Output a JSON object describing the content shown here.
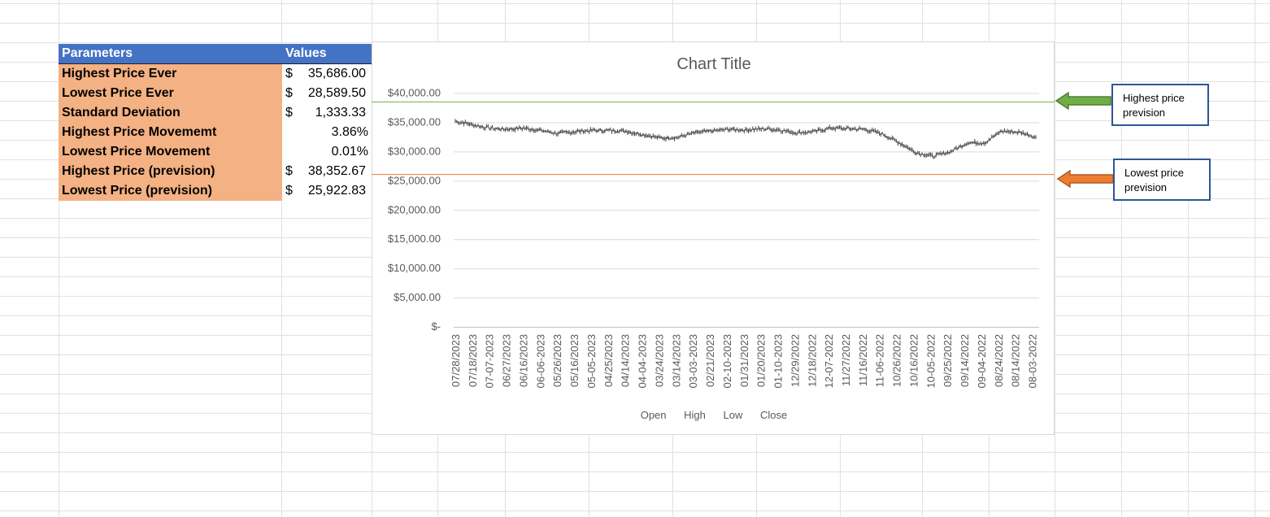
{
  "sheet": {
    "params_header": "Parameters",
    "values_header": "Values",
    "rows": [
      {
        "label": "Highest Price Ever",
        "currency": "$",
        "amount": "35,686.00"
      },
      {
        "label": "Lowest Price Ever",
        "currency": "$",
        "amount": "28,589.50"
      },
      {
        "label": "Standard Deviation",
        "currency": "$",
        "amount": "1,333.33"
      },
      {
        "label": "Highest Price Movememt",
        "percent": "3.86%"
      },
      {
        "label": "Lowest Price Movement",
        "percent": "0.01%"
      },
      {
        "label": "Highest Price (prevision)",
        "currency": "$",
        "amount": "38,352.67"
      },
      {
        "label": "Lowest Price (prevision)",
        "currency": "$",
        "amount": "25,922.83"
      }
    ]
  },
  "chart_data": {
    "type": "line",
    "title": "Chart Title",
    "ylim": [
      0,
      40000
    ],
    "y_ticks": [
      "$-",
      "$5,000.00",
      "$10,000.00",
      "$15,000.00",
      "$20,000.00",
      "$25,000.00",
      "$30,000.00",
      "$35,000.00",
      "$40,000.00"
    ],
    "categories": [
      "07/28/2023",
      "07/18/2023",
      "07-07-2023",
      "06/27/2023",
      "06/16/2023",
      "06-06-2023",
      "05/26/2023",
      "05/16/2023",
      "05-05-2023",
      "04/25/2023",
      "04/14/2023",
      "04-04-2023",
      "03/24/2023",
      "03/14/2023",
      "03-03-2023",
      "02/21/2023",
      "02-10-2023",
      "01/31/2023",
      "01/20/2023",
      "01-10-2023",
      "12/29/2022",
      "12/18/2022",
      "12-07-2022",
      "11/27/2022",
      "11/16/2022",
      "11-06-2022",
      "10/26/2022",
      "10/16/2022",
      "10-05-2022",
      "09/25/2022",
      "09/14/2022",
      "09-04-2022",
      "08/24/2022",
      "08/14/2022",
      "08-03-2022"
    ],
    "close_approx": [
      35200,
      34600,
      34000,
      33800,
      34000,
      33600,
      33100,
      33400,
      33600,
      33600,
      33500,
      32900,
      32300,
      32400,
      33200,
      33500,
      33800,
      33700,
      33900,
      33700,
      33200,
      33400,
      34000,
      33900,
      33800,
      33000,
      31500,
      29800,
      29200,
      30000,
      31500,
      31500,
      33500,
      33300,
      32500
    ],
    "legend": [
      "Open",
      "High",
      "Low",
      "Close"
    ],
    "reference_lines": [
      {
        "name": "Highest price prevision",
        "value": 38352.67,
        "color": "#70ad47"
      },
      {
        "name": "Lowest price prevision",
        "value": 25922.83,
        "color": "#ed7d31"
      }
    ],
    "grid": true,
    "legend_position": "bottom"
  },
  "callouts": {
    "high": {
      "label": "Highest price prevision",
      "arrow_color": "#70ad47"
    },
    "low": {
      "label": "Lowest price prevision",
      "arrow_color": "#ed7d31"
    }
  }
}
